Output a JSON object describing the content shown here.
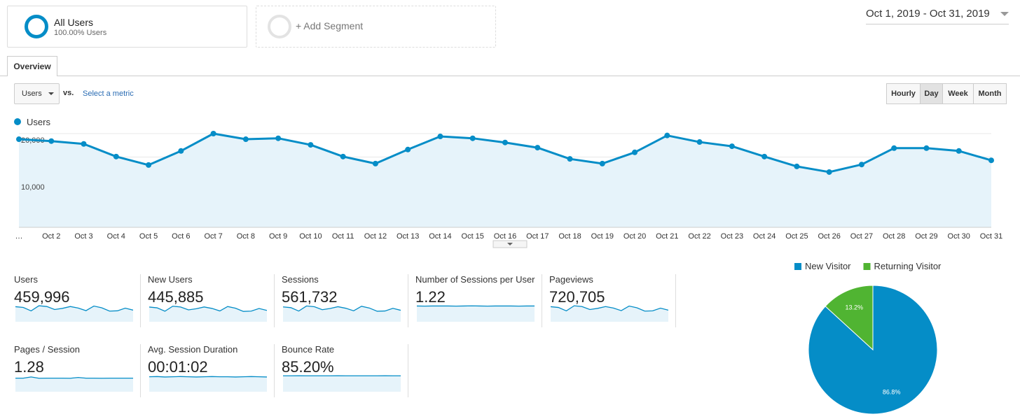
{
  "segments": [
    {
      "name": "All Users",
      "detail": "100.00% Users"
    },
    {
      "name": "+ Add Segment"
    }
  ],
  "date_range": "Oct 1, 2019 - Oct 31, 2019",
  "tab": "Overview",
  "metric_selector": {
    "selected": "Users",
    "vs": "vs.",
    "link": "Select a metric"
  },
  "granularity": {
    "options": [
      "Hourly",
      "Day",
      "Week",
      "Month"
    ],
    "active": 1
  },
  "chart_data": [
    {
      "type": "line",
      "categories": [
        "…",
        "Oct 2",
        "Oct 3",
        "Oct 4",
        "Oct 5",
        "Oct 6",
        "Oct 7",
        "Oct 8",
        "Oct 9",
        "Oct 10",
        "Oct 11",
        "Oct 12",
        "Oct 13",
        "Oct 14",
        "Oct 15",
        "Oct 16",
        "Oct 17",
        "Oct 18",
        "Oct 19",
        "Oct 20",
        "Oct 21",
        "Oct 22",
        "Oct 23",
        "Oct 24",
        "Oct 25",
        "Oct 26",
        "Oct 27",
        "Oct 28",
        "Oct 29",
        "Oct 30",
        "Oct 31"
      ],
      "series": [
        {
          "name": "Users",
          "color": "#058dc7",
          "values": [
            18800,
            18400,
            17800,
            15100,
            13300,
            16300,
            20000,
            18800,
            19000,
            17600,
            15100,
            13600,
            16600,
            19400,
            19000,
            18100,
            17000,
            14600,
            13600,
            16000,
            19600,
            18200,
            17300,
            15100,
            13000,
            11800,
            13400,
            16900,
            16900,
            16300,
            14300
          ]
        }
      ],
      "ylim": [
        0,
        20000
      ],
      "yticks": [
        {
          "value": 10000,
          "label": "10,000"
        },
        {
          "value": 20000,
          "label": "20,000"
        }
      ],
      "minor_grid": [
        5000,
        15000
      ],
      "area": true
    },
    {
      "type": "pie",
      "categories": [
        "New Visitor",
        "Returning Visitor"
      ],
      "values": [
        86.8,
        13.2
      ],
      "value_labels": [
        "86.8%",
        "13.2%"
      ],
      "colors": [
        "#058dc7",
        "#50b432"
      ],
      "legend": "top"
    }
  ],
  "metrics": [
    {
      "label": "Users",
      "value": "459,996",
      "sparkline": [
        18800,
        17800,
        13300,
        20000,
        19000,
        15100,
        16600,
        19000,
        17000,
        13600,
        19600,
        17300,
        13000,
        13400,
        16900,
        14300
      ],
      "sparkline_ylim": [
        0,
        21000
      ]
    },
    {
      "label": "New Users",
      "value": "445,885",
      "sparkline": [
        18300,
        17300,
        12900,
        19400,
        18400,
        14600,
        16100,
        18400,
        16500,
        13200,
        19000,
        16800,
        12600,
        13000,
        16400,
        13900
      ],
      "sparkline_ylim": [
        0,
        21000
      ]
    },
    {
      "label": "Sessions",
      "value": "561,732",
      "sparkline": [
        22900,
        21700,
        16200,
        24400,
        23200,
        18400,
        20300,
        23200,
        20700,
        16600,
        23900,
        21100,
        15900,
        16300,
        20600,
        17400
      ],
      "sparkline_ylim": [
        0,
        26000
      ]
    },
    {
      "label": "Number of Sessions per User",
      "value": "1.22",
      "sparkline": [
        1.22,
        1.21,
        1.22,
        1.22,
        1.22,
        1.21,
        1.22,
        1.23,
        1.22,
        1.21,
        1.22,
        1.22,
        1.22,
        1.21,
        1.22,
        1.22
      ],
      "sparkline_ylim": [
        0,
        1.3
      ]
    },
    {
      "label": "Pageviews",
      "value": "720,705",
      "sparkline": [
        29500,
        27900,
        20900,
        31400,
        29800,
        23700,
        26100,
        29800,
        26700,
        21400,
        30800,
        27200,
        20400,
        21000,
        26500,
        22400
      ],
      "sparkline_ylim": [
        0,
        33000
      ]
    },
    {
      "label": "Pages / Session",
      "value": "1.28",
      "sparkline": [
        1.28,
        1.28,
        1.4,
        1.27,
        1.28,
        1.28,
        1.28,
        1.27,
        1.35,
        1.28,
        1.28,
        1.27,
        1.28,
        1.28,
        1.28,
        1.28
      ],
      "sparkline_ylim": [
        0,
        1.6
      ]
    },
    {
      "label": "Avg. Session Duration",
      "value": "00:01:02",
      "sparkline": [
        62,
        63,
        61,
        62,
        63,
        62,
        61,
        62,
        63,
        62,
        62,
        61,
        62,
        63,
        62,
        61
      ],
      "sparkline_ylim": [
        0,
        70
      ]
    },
    {
      "label": "Bounce Rate",
      "value": "85.20%",
      "sparkline": [
        85.2,
        85.1,
        85.3,
        85.2,
        85.2,
        85.1,
        85.2,
        85.3,
        85.2,
        85.2,
        85.1,
        85.2,
        85.2,
        85.3,
        85.2,
        85.2
      ],
      "sparkline_ylim": [
        0,
        90
      ]
    }
  ]
}
